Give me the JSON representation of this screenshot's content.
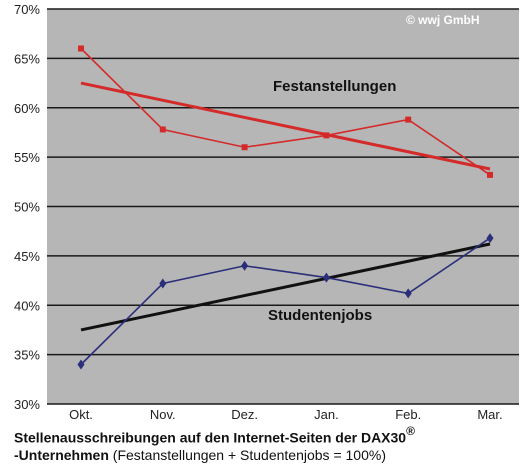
{
  "copyright": "© wwj GmbH",
  "caption": {
    "line1_bold": "Stellenausschreibungen auf den Internet-Seiten der DAX30",
    "line1_sup": "®",
    "line2_bold": "-Unternehmen",
    "line2_normal": " (Festanstellungen + Studentenjobs = 100%)"
  },
  "chart_data": {
    "type": "line",
    "categories": [
      "Okt.",
      "Nov.",
      "Dez.",
      "Jan.",
      "Feb.",
      "Mar."
    ],
    "ylim": [
      30,
      70
    ],
    "yticks": [
      "30%",
      "35%",
      "40%",
      "45%",
      "50%",
      "55%",
      "60%",
      "65%",
      "70%"
    ],
    "grid": true,
    "series": [
      {
        "name": "Festanstellungen",
        "color": "#d42a2a",
        "marker": "square",
        "values": [
          66,
          57.8,
          56,
          57.2,
          58.8,
          53.2
        ],
        "trend": [
          62.5,
          53.8
        ]
      },
      {
        "name": "Studentenjobs",
        "color": "#2b2f7a",
        "marker": "diamond",
        "values": [
          34,
          42.2,
          44,
          42.8,
          41.2,
          46.8
        ],
        "trend": [
          37.5,
          46.2
        ]
      }
    ],
    "trend_color": "#111111"
  }
}
